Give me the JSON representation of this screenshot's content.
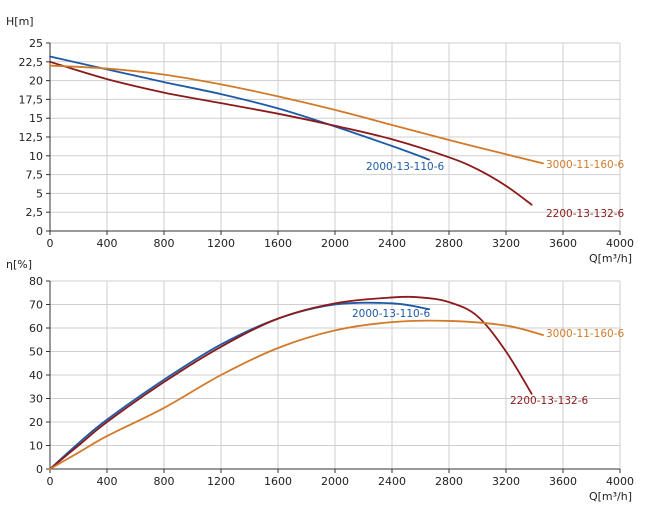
{
  "chart_data": [
    {
      "type": "line",
      "ylabel": "H[m]",
      "xlabel": "Q[m³/h]",
      "xlim": [
        0,
        4000
      ],
      "ylim": [
        0,
        25
      ],
      "x_ticks": [
        0,
        400,
        800,
        1200,
        1600,
        2000,
        2400,
        2800,
        3200,
        3600,
        4000
      ],
      "x_tick_labels": [
        "0",
        "400",
        "800",
        "1200",
        "1600",
        "2000",
        "2400",
        "2800",
        "3200",
        "3600",
        "4000"
      ],
      "y_ticks": [
        0,
        2.5,
        5,
        7.5,
        10,
        12.5,
        15,
        17.5,
        20,
        22.5,
        25
      ],
      "y_tick_labels": [
        "0",
        "2,5",
        "5",
        "7,5",
        "10",
        "12,5",
        "15",
        "17,5",
        "20",
        "22,5",
        "25"
      ],
      "grid": true,
      "series": [
        {
          "name": "2000-13-110-6",
          "color": "#1f5aa6",
          "points": [
            [
              0,
              23.2
            ],
            [
              400,
              21.5
            ],
            [
              800,
              19.8
            ],
            [
              1200,
              18.2
            ],
            [
              1600,
              16.3
            ],
            [
              2000,
              13.9
            ],
            [
              2400,
              11.3
            ],
            [
              2660,
              9.5
            ]
          ]
        },
        {
          "name": "2200-13-132-6",
          "color": "#8b1a1a",
          "points": [
            [
              0,
              22.5
            ],
            [
              400,
              20.2
            ],
            [
              800,
              18.4
            ],
            [
              1200,
              17.0
            ],
            [
              1600,
              15.6
            ],
            [
              2000,
              14.0
            ],
            [
              2400,
              12.2
            ],
            [
              2800,
              9.8
            ],
            [
              3000,
              8.2
            ],
            [
              3200,
              6.0
            ],
            [
              3380,
              3.5
            ]
          ]
        },
        {
          "name": "3000-11-160-6",
          "color": "#d27a2a",
          "points": [
            [
              0,
              22.0
            ],
            [
              400,
              21.6
            ],
            [
              800,
              20.8
            ],
            [
              1200,
              19.5
            ],
            [
              1600,
              17.9
            ],
            [
              2000,
              16.1
            ],
            [
              2400,
              14.1
            ],
            [
              2800,
              12.1
            ],
            [
              3200,
              10.2
            ],
            [
              3460,
              9.0
            ]
          ]
        }
      ]
    },
    {
      "type": "line",
      "ylabel": "η[%]",
      "xlabel": "Q[m³/h]",
      "xlim": [
        0,
        4000
      ],
      "ylim": [
        0,
        80
      ],
      "x_ticks": [
        0,
        400,
        800,
        1200,
        1600,
        2000,
        2400,
        2800,
        3200,
        3600,
        4000
      ],
      "x_tick_labels": [
        "0",
        "400",
        "800",
        "1200",
        "1600",
        "2000",
        "2400",
        "2800",
        "3200",
        "3600",
        "4000"
      ],
      "y_ticks": [
        0,
        10,
        20,
        30,
        40,
        50,
        60,
        70,
        80
      ],
      "y_tick_labels": [
        "0",
        "10",
        "20",
        "30",
        "40",
        "50",
        "60",
        "70",
        "80"
      ],
      "grid": true,
      "series": [
        {
          "name": "2000-13-110-6",
          "color": "#1f5aa6",
          "points": [
            [
              0,
              0
            ],
            [
              200,
              11
            ],
            [
              400,
              21
            ],
            [
              800,
              38
            ],
            [
              1200,
              53
            ],
            [
              1600,
              64
            ],
            [
              2000,
              70
            ],
            [
              2400,
              70.5
            ],
            [
              2660,
              68
            ]
          ]
        },
        {
          "name": "2200-13-132-6",
          "color": "#8b1a1a",
          "points": [
            [
              0,
              0
            ],
            [
              200,
              10
            ],
            [
              400,
              20
            ],
            [
              800,
              37
            ],
            [
              1200,
              52
            ],
            [
              1600,
              64
            ],
            [
              2000,
              70.5
            ],
            [
              2400,
              73
            ],
            [
              2600,
              73
            ],
            [
              2800,
              71
            ],
            [
              3000,
              65
            ],
            [
              3200,
              50
            ],
            [
              3380,
              32
            ]
          ]
        },
        {
          "name": "3000-11-160-6",
          "color": "#d27a2a",
          "points": [
            [
              0,
              0
            ],
            [
              200,
              7
            ],
            [
              400,
              14
            ],
            [
              800,
              26
            ],
            [
              1200,
              40
            ],
            [
              1600,
              51.5
            ],
            [
              2000,
              59
            ],
            [
              2400,
              62.5
            ],
            [
              2800,
              63
            ],
            [
              3200,
              61
            ],
            [
              3460,
              57
            ]
          ]
        }
      ]
    }
  ]
}
